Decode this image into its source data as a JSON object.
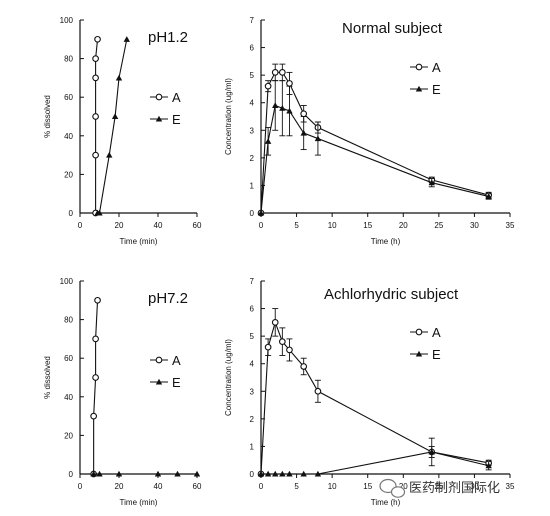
{
  "chart_data": [
    {
      "id": "p1",
      "type": "line",
      "title": "pH1.2",
      "xlabel": "Time (min)",
      "ylabel": "% dissolved",
      "xlim": [
        0,
        60
      ],
      "ylim": [
        0,
        100
      ],
      "xticks": [
        0,
        20,
        40,
        60
      ],
      "yticks": [
        0,
        20,
        40,
        60,
        80,
        100
      ],
      "legend": "right",
      "series": [
        {
          "name": "A",
          "marker": "circle",
          "x": [
            8,
            8,
            8,
            8,
            8,
            9
          ],
          "y": [
            0,
            30,
            50,
            70,
            80,
            90
          ]
        },
        {
          "name": "E",
          "marker": "triangle",
          "x": [
            9,
            10,
            15,
            18,
            20,
            24
          ],
          "y": [
            0,
            0,
            30,
            50,
            70,
            90
          ]
        }
      ]
    },
    {
      "id": "p2",
      "type": "line",
      "title": "Normal subject",
      "xlabel": "Time (h)",
      "ylabel": "Concentration (ug/ml)",
      "xlim": [
        0,
        35
      ],
      "ylim": [
        0,
        7
      ],
      "xticks": [
        0,
        5,
        10,
        15,
        20,
        25,
        30,
        35
      ],
      "yticks": [
        0,
        1,
        2,
        3,
        4,
        5,
        6,
        7
      ],
      "legend": "right",
      "series": [
        {
          "name": "A",
          "marker": "circle",
          "x": [
            0,
            1,
            2,
            3,
            4,
            6,
            8,
            24,
            32
          ],
          "y": [
            0,
            4.6,
            5.1,
            5.1,
            4.7,
            3.6,
            3.1,
            1.2,
            0.65
          ],
          "err": [
            0,
            0.2,
            0.3,
            0.3,
            0.4,
            0.3,
            0.2,
            0.1,
            0.1
          ]
        },
        {
          "name": "E",
          "marker": "triangle",
          "x": [
            0,
            1,
            2,
            3,
            4,
            6,
            8,
            24,
            32
          ],
          "y": [
            0,
            2.6,
            3.9,
            3.8,
            3.7,
            2.9,
            2.7,
            1.1,
            0.6
          ],
          "err": [
            0,
            0.5,
            0.9,
            1.0,
            0.9,
            0.6,
            0.6,
            0.15,
            0.1
          ]
        }
      ]
    },
    {
      "id": "p3",
      "type": "line",
      "title": "pH7.2",
      "xlabel": "Time (min)",
      "ylabel": "% dissolved",
      "xlim": [
        0,
        60
      ],
      "ylim": [
        0,
        100
      ],
      "xticks": [
        0,
        20,
        40,
        60
      ],
      "yticks": [
        0,
        20,
        40,
        60,
        80,
        100
      ],
      "legend": "right",
      "series": [
        {
          "name": "A",
          "marker": "circle",
          "x": [
            7,
            7,
            8,
            8,
            9
          ],
          "y": [
            0,
            30,
            50,
            70,
            90
          ]
        },
        {
          "name": "E",
          "marker": "triangle",
          "x": [
            7,
            10,
            20,
            40,
            50,
            60
          ],
          "y": [
            0,
            0,
            0,
            0,
            0,
            0
          ]
        }
      ]
    },
    {
      "id": "p4",
      "type": "line",
      "title": "Achlorhydric subject",
      "xlabel": "Time (h)",
      "ylabel": "Concentration (ug/ml)",
      "xlim": [
        0,
        35
      ],
      "ylim": [
        0,
        7
      ],
      "xticks": [
        0,
        5,
        10,
        15,
        20,
        25,
        30,
        35
      ],
      "yticks": [
        0,
        1,
        2,
        3,
        4,
        5,
        6,
        7
      ],
      "legend": "right",
      "series": [
        {
          "name": "A",
          "marker": "circle",
          "x": [
            0,
            1,
            2,
            3,
            4,
            6,
            8,
            24,
            32
          ],
          "y": [
            0,
            4.6,
            5.5,
            4.8,
            4.5,
            3.9,
            3.0,
            0.8,
            0.4
          ],
          "err": [
            0,
            0.3,
            0.5,
            0.5,
            0.4,
            0.3,
            0.4,
            0.2,
            0.1
          ]
        },
        {
          "name": "E",
          "marker": "triangle",
          "x": [
            0,
            1,
            2,
            3,
            4,
            6,
            8,
            24,
            32
          ],
          "y": [
            0,
            0,
            0,
            0,
            0,
            0,
            0,
            0.8,
            0.3
          ],
          "err": [
            0,
            0,
            0,
            0,
            0,
            0,
            0,
            0.5,
            0.15
          ]
        }
      ]
    }
  ],
  "watermark": {
    "text": "医药制剂国际化",
    "icon": "wechat-icon"
  }
}
